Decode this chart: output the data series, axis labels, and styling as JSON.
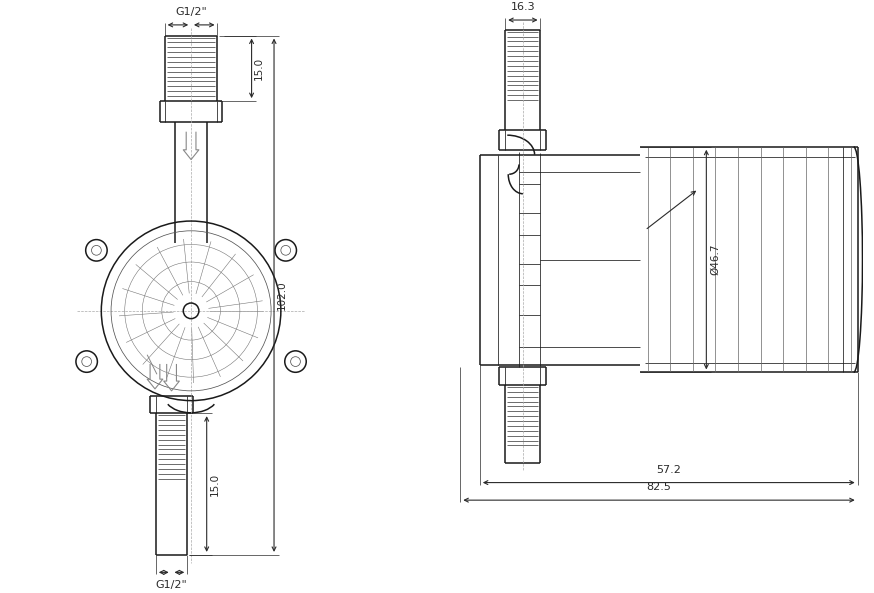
{
  "bg_color": "#ffffff",
  "line_color": "#1a1a1a",
  "dim_color": "#2a2a2a",
  "figsize": [
    8.74,
    5.93
  ],
  "dpi": 100,
  "annotations": {
    "g1_2_top": "G1/2\"",
    "g1_2_bottom": "G1/2\"",
    "dim_15_top": "15.0",
    "dim_15_bottom": "15.0",
    "dim_102": "102.0",
    "dim_16_3": "16.3",
    "dim_46_7": "Ø46.7",
    "dim_57_2": "57.2",
    "dim_82_5": "82.5"
  }
}
